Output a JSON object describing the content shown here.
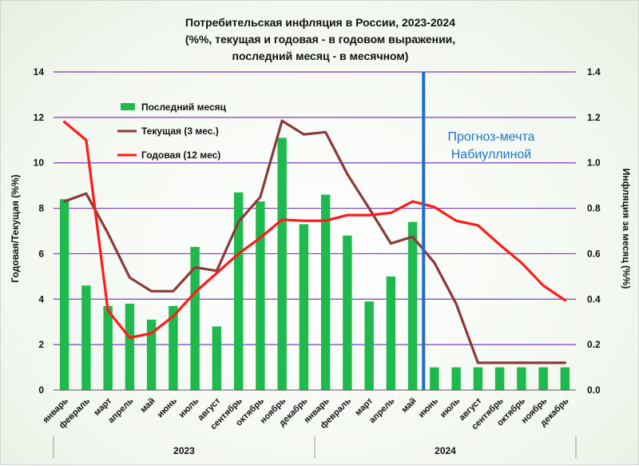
{
  "chart_data": {
    "type": "bar",
    "title": [
      "Потребительская инфляция в России, 2023-2024",
      "(%%, текущая и годовая - в годовом выражении,",
      "последний месяц - в месячном)"
    ],
    "ylabel_left": "Годовая/Текущая (%%)",
    "ylabel_right": "Инфляция за месяц (%%)",
    "ylim_left": [
      0,
      14
    ],
    "ylim_right": [
      0.0,
      1.4
    ],
    "yticks_left": [
      "0",
      "2",
      "4",
      "6",
      "8",
      "10",
      "12",
      "14"
    ],
    "yticks_right": [
      "0.0",
      "0.2",
      "0.4",
      "0.6",
      "0.8",
      "1.0",
      "1.2",
      "1.4"
    ],
    "categories": [
      "январь",
      "февраль",
      "март",
      "апрель",
      "май",
      "июнь",
      "июль",
      "август",
      "сентябрь",
      "октябрь",
      "ноябрь",
      "декабрь",
      "январь",
      "февраль",
      "март",
      "апрель",
      "май",
      "июнь",
      "июль",
      "август",
      "сентябрь",
      "октябрь",
      "ноябрь",
      "декабрь"
    ],
    "years": [
      {
        "label": "2023",
        "from": 0,
        "to": 11
      },
      {
        "label": "2024",
        "from": 12,
        "to": 23
      }
    ],
    "series": [
      {
        "name": "Последний месяц",
        "kind": "bar",
        "axis": "right",
        "color": "#1fba4e",
        "values": [
          0.84,
          0.46,
          0.37,
          0.38,
          0.31,
          0.37,
          0.63,
          0.28,
          0.87,
          0.83,
          1.11,
          0.73,
          0.86,
          0.68,
          0.39,
          0.5,
          0.74,
          0.1,
          0.1,
          0.1,
          0.1,
          0.1,
          0.1,
          0.1
        ]
      },
      {
        "name": "Текущая (3 мес.)",
        "kind": "line",
        "axis": "left",
        "color": "#8b3a3a",
        "values": [
          8.3,
          8.65,
          6.9,
          4.95,
          4.35,
          4.35,
          5.4,
          5.25,
          7.4,
          8.5,
          11.85,
          11.25,
          11.35,
          9.5,
          8.0,
          6.45,
          6.75,
          5.6,
          3.8,
          1.2,
          1.2,
          1.2,
          1.2,
          1.2
        ]
      },
      {
        "name": "Годовая (12 мес)",
        "kind": "line",
        "axis": "left",
        "color": "#ff1a1a",
        "values": [
          11.8,
          11.0,
          3.5,
          2.3,
          2.5,
          3.25,
          4.3,
          5.15,
          6.0,
          6.7,
          7.5,
          7.45,
          7.45,
          7.7,
          7.7,
          7.8,
          8.3,
          8.05,
          7.45,
          7.25,
          6.4,
          5.6,
          4.6,
          3.95
        ]
      }
    ],
    "vertical_marker": {
      "between_index": [
        16,
        17
      ],
      "color": "#1e6fc7"
    },
    "annotation": [
      "Прогноз-мечта",
      "Набиуллиной"
    ],
    "grid": true,
    "grid_color": "#7a3fb6",
    "legend_position": "top-left"
  }
}
